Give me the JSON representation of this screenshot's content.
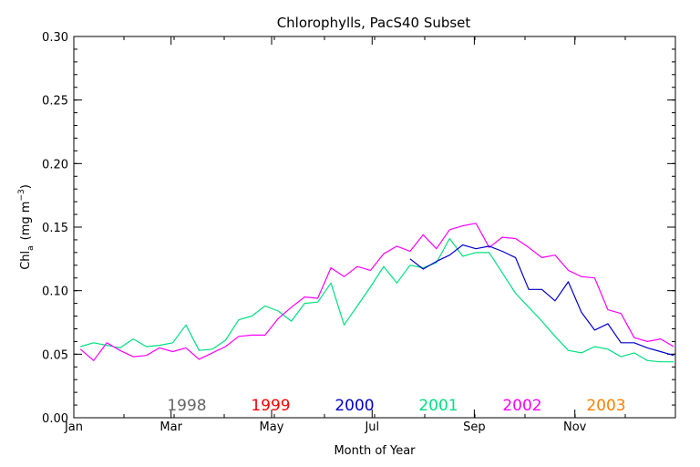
{
  "chart_data": {
    "type": "line",
    "title": "Chlorophylls, PacS40 Subset",
    "xlabel": "Month of Year",
    "ylabel": "Chl",
    "ylabel_sub": "a",
    "ylabel_unit_open": "(mg m",
    "ylabel_unit_sup": "−3",
    "ylabel_unit_close": ")",
    "xlim": [
      0,
      365
    ],
    "ylim": [
      0,
      0.3
    ],
    "x_ticks": [
      {
        "label": "Jan",
        "value": 0
      },
      {
        "label": "Mar",
        "value": 59
      },
      {
        "label": "May",
        "value": 120
      },
      {
        "label": "Jul",
        "value": 181
      },
      {
        "label": "Sep",
        "value": 243
      },
      {
        "label": "Nov",
        "value": 304
      }
    ],
    "y_ticks": [
      {
        "label": "0.00",
        "value": 0.0
      },
      {
        "label": "0.05",
        "value": 0.05
      },
      {
        "label": "0.10",
        "value": 0.1
      },
      {
        "label": "0.15",
        "value": 0.15
      },
      {
        "label": "0.20",
        "value": 0.2
      },
      {
        "label": "0.25",
        "value": 0.25
      },
      {
        "label": "0.30",
        "value": 0.3
      }
    ],
    "legend": [
      {
        "name": "1998",
        "color": "#666666"
      },
      {
        "name": "1999",
        "color": "#ff0000"
      },
      {
        "name": "2000",
        "color": "#0000cc"
      },
      {
        "name": "2001",
        "color": "#00e080"
      },
      {
        "name": "2002",
        "color": "#ff00ff"
      },
      {
        "name": "2003",
        "color": "#ff8000"
      }
    ],
    "series": [
      {
        "name": "2001",
        "color": "#00e080",
        "x": [
          4,
          12,
          20,
          28,
          36,
          44,
          52,
          60,
          68,
          76,
          84,
          92,
          100,
          108,
          116,
          124,
          132,
          140,
          148,
          156,
          164,
          172,
          180,
          188,
          196,
          204,
          212,
          220,
          228,
          236,
          244,
          252,
          260,
          268,
          276,
          284,
          292,
          300,
          308,
          316,
          324,
          332,
          340,
          348,
          356,
          364
        ],
        "y": [
          0.056,
          0.059,
          0.057,
          0.055,
          0.062,
          0.056,
          0.057,
          0.059,
          0.073,
          0.053,
          0.054,
          0.061,
          0.077,
          0.08,
          0.088,
          0.084,
          0.076,
          0.09,
          0.091,
          0.106,
          0.073,
          0.088,
          0.103,
          0.119,
          0.106,
          0.12,
          0.118,
          0.122,
          0.141,
          0.127,
          0.13,
          0.13,
          0.114,
          0.098,
          0.087,
          0.076,
          0.064,
          0.053,
          0.051,
          0.056,
          0.054,
          0.048,
          0.051,
          0.045,
          0.044,
          0.044
        ]
      },
      {
        "name": "2002",
        "color": "#ff00ff",
        "x": [
          4,
          12,
          20,
          28,
          36,
          44,
          52,
          60,
          68,
          76,
          84,
          92,
          100,
          108,
          116,
          124,
          132,
          140,
          148,
          156,
          164,
          172,
          180,
          188,
          196,
          204,
          212,
          220,
          228,
          236,
          244,
          252,
          260,
          268,
          276,
          284,
          292,
          300,
          308,
          316,
          324,
          332,
          340,
          348,
          356,
          364
        ],
        "y": [
          0.054,
          0.045,
          0.059,
          0.053,
          0.048,
          0.049,
          0.055,
          0.052,
          0.055,
          0.046,
          0.051,
          0.056,
          0.064,
          0.065,
          0.065,
          0.078,
          0.087,
          0.095,
          0.094,
          0.118,
          0.111,
          0.119,
          0.116,
          0.129,
          0.135,
          0.131,
          0.144,
          0.133,
          0.148,
          0.151,
          0.153,
          0.134,
          0.142,
          0.141,
          0.134,
          0.126,
          0.128,
          0.116,
          0.111,
          0.11,
          0.085,
          0.082,
          0.063,
          0.06,
          0.062,
          0.056
        ]
      },
      {
        "name": "2000",
        "color": "#0000cc",
        "x": [
          204,
          212,
          220,
          228,
          236,
          244,
          252,
          260,
          268,
          276,
          284,
          292,
          300,
          308,
          316,
          324,
          332,
          340,
          348,
          356,
          364
        ],
        "y": [
          0.125,
          0.117,
          0.123,
          0.128,
          0.136,
          0.133,
          0.135,
          0.131,
          0.126,
          0.101,
          0.101,
          0.092,
          0.107,
          0.083,
          0.069,
          0.074,
          0.059,
          0.059,
          0.055,
          0.052,
          0.049
        ]
      }
    ]
  }
}
